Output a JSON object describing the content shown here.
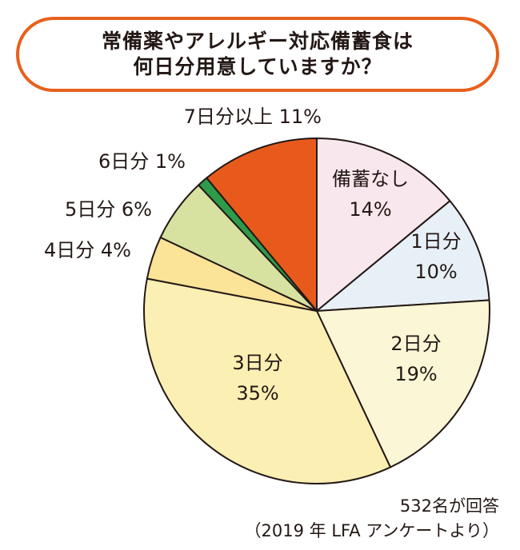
{
  "title": {
    "line1": "常備薬やアレルギー対応備蓄食は",
    "line2": "何日分用意していますか？"
  },
  "chart_data": {
    "type": "pie",
    "series": [
      {
        "label": "備蓄なし",
        "value": 14,
        "text": "14%",
        "color": "#f9e7ee"
      },
      {
        "label": "1日分",
        "value": 10,
        "text": "10%",
        "color": "#e7f0f7"
      },
      {
        "label": "2日分",
        "value": 19,
        "text": "19%",
        "color": "#fbf6d6"
      },
      {
        "label": "3日分",
        "value": 35,
        "text": "35%",
        "color": "#fcefb4"
      },
      {
        "label": "4日分",
        "value": 4,
        "text": "4%",
        "color": "#fbe398"
      },
      {
        "label": "5日分",
        "value": 6,
        "text": "6%",
        "color": "#d7e1a0"
      },
      {
        "label": "6日分",
        "value": 1,
        "text": "1%",
        "color": "#2e9b4a"
      },
      {
        "label": "7日分以上",
        "value": 11,
        "text": "11%",
        "color": "#e85a1c"
      }
    ]
  },
  "notes": {
    "respondents": "532名が回答",
    "source": "（2019 年 LFA アンケートより）"
  }
}
